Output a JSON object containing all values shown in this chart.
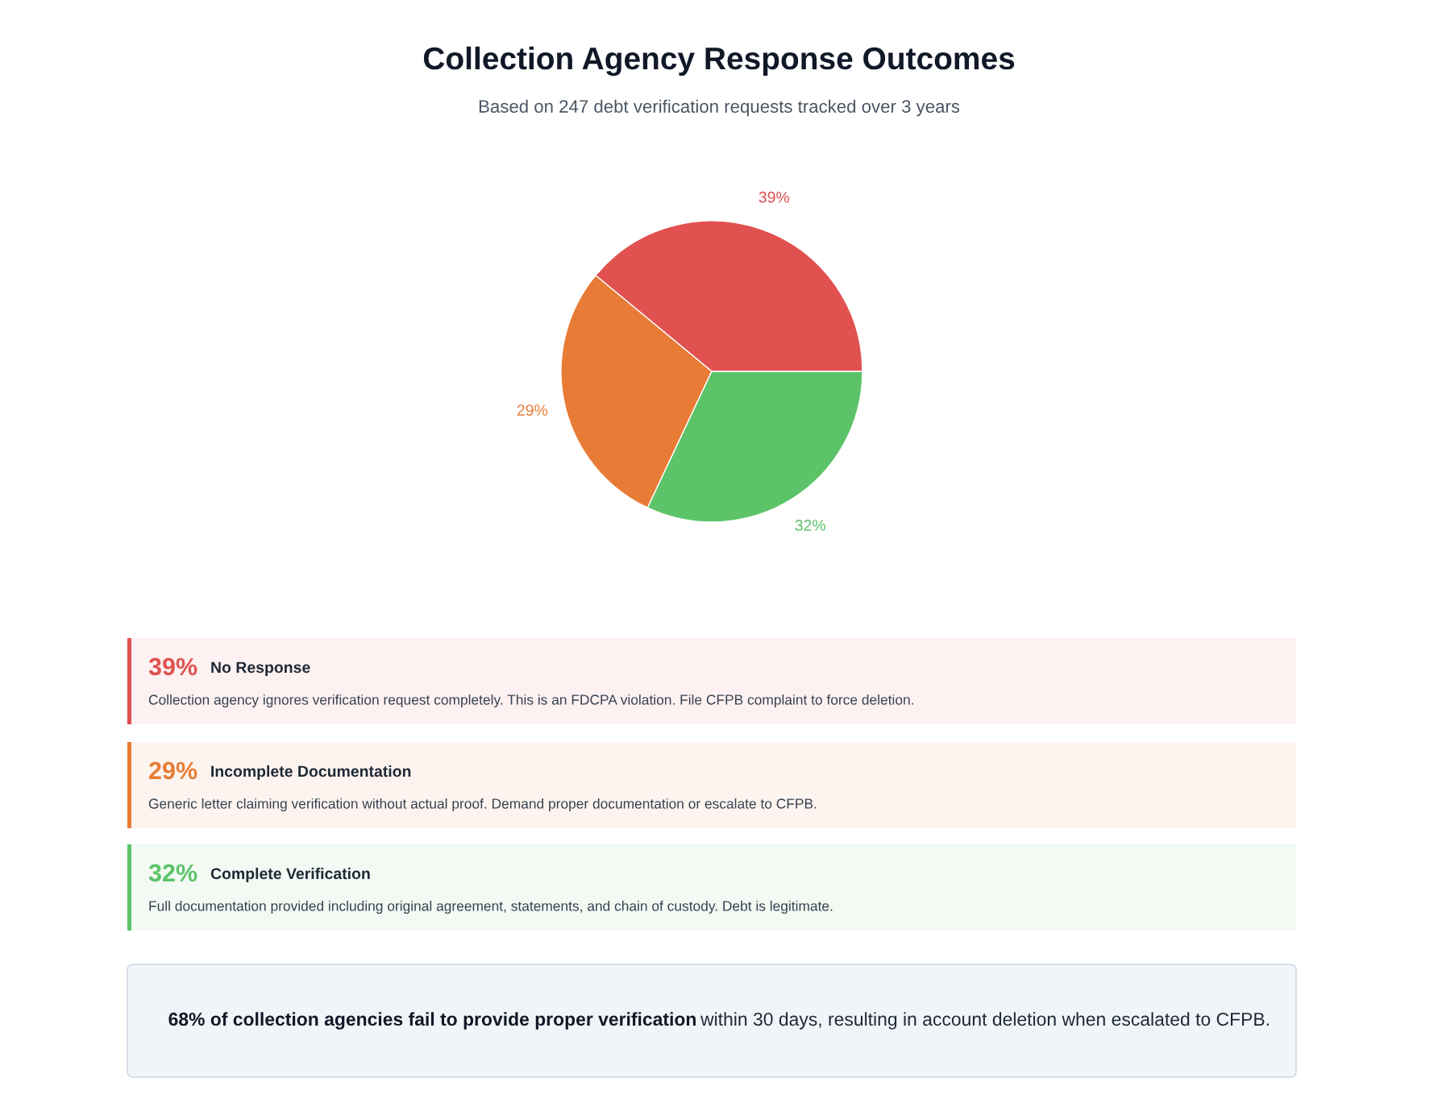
{
  "chart_data": {
    "type": "pie",
    "title": "Collection Agency Response Outcomes",
    "subtitle": "Based on 247 debt verification requests tracked over 3 years",
    "categories": [
      null,
      null,
      null
    ],
    "values": [
      39,
      29,
      32
    ],
    "value_labels": [
      "39%",
      "29%",
      "32%"
    ],
    "colors": [
      "#e05150",
      "#e87b35",
      "#5cc368"
    ],
    "annotations": [
      "39%",
      "No Response",
      "Collection agency ignores verification request completely. This is an FDCPA violation. File CFPB complaint to force deletion.",
      "29%",
      "Incomplete Documentation",
      "Generic letter claiming verification without actual proof. Demand proper documentation or escalate to CFPB.",
      "32%",
      "Complete Verification",
      "Full documentation provided including original agreement, statements, and chain of custody. Debt is legitimate.",
      "68% of collection agencies fail to provide proper verification",
      "within 30 days, resulting in account deletion when escalated to CFPB."
    ]
  }
}
